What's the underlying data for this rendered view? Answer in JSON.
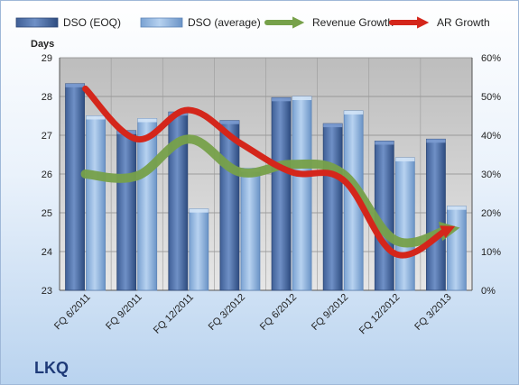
{
  "company": "LKQ",
  "chart_data": {
    "type": "bar",
    "categories": [
      "FQ 6/2011",
      "FQ 9/2011",
      "FQ 12/2011",
      "FQ 3/2012",
      "FQ 6/2012",
      "FQ 9/2012",
      "FQ 12/2012",
      "FQ 3/2013"
    ],
    "ylabel": "Days",
    "ylim": [
      23,
      29
    ],
    "yticks": [
      "23",
      "24",
      "25",
      "26",
      "27",
      "28",
      "29"
    ],
    "y2lim": [
      0,
      60
    ],
    "y2ticks": [
      "0%",
      "10%",
      "20%",
      "30%",
      "40%",
      "50%",
      "60%"
    ],
    "grid": true,
    "legend_position": "top",
    "series": [
      {
        "name": "DSO (EOQ)",
        "type": "bar",
        "axis": "left",
        "color": "#4f73ad",
        "values": [
          28.33,
          27.12,
          27.6,
          27.38,
          27.97,
          27.3,
          26.85,
          26.9
        ]
      },
      {
        "name": "DSO (average)",
        "type": "bar",
        "axis": "left",
        "color": "#8fb4de",
        "values": [
          27.5,
          27.43,
          25.1,
          26.15,
          28.0,
          27.63,
          26.42,
          25.17
        ]
      },
      {
        "name": "Revenue Growth",
        "type": "line",
        "axis": "right",
        "unit": "%",
        "color": "#77a14a",
        "values": [
          30,
          29.5,
          39,
          30.5,
          32.5,
          30,
          13,
          15.5
        ]
      },
      {
        "name": "AR Growth",
        "type": "line",
        "axis": "right",
        "unit": "%",
        "color": "#d4261b",
        "values": [
          52,
          39,
          46.5,
          38,
          30.5,
          28.5,
          9.5,
          15.5
        ]
      }
    ]
  }
}
